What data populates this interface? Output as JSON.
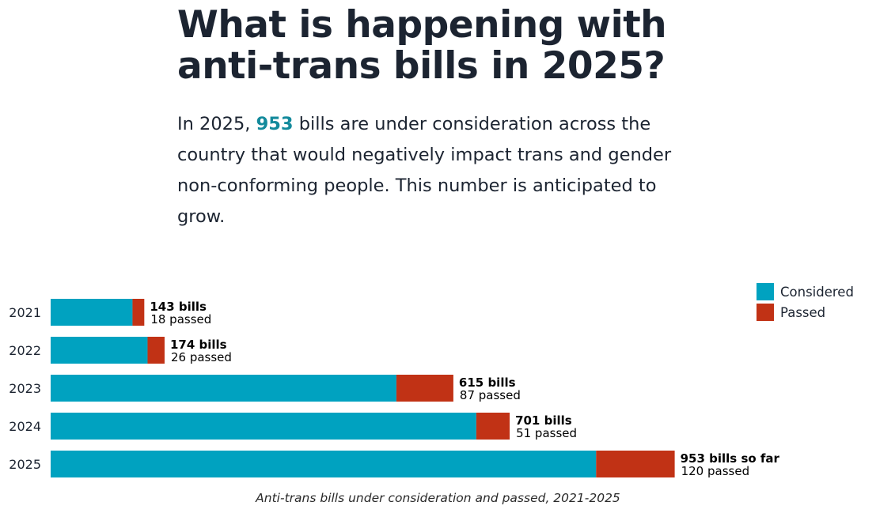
{
  "header": {
    "title_line1": "What is happening with",
    "title_line2": "anti-trans bills in 2025?",
    "intro_prefix": "In 2025, ",
    "intro_highlight": "953",
    "intro_suffix": " bills are under consideration across the country that would negatively impact trans and gender non-conforming people. This number is anticipated to grow."
  },
  "colors": {
    "considered": "#00a2c0",
    "passed": "#c13215",
    "highlight": "#138a9c"
  },
  "chart_data": {
    "type": "bar",
    "orientation": "horizontal",
    "stacked": true,
    "categories": [
      "2021",
      "2022",
      "2023",
      "2024",
      "2025"
    ],
    "series": [
      {
        "name": "Considered",
        "values": [
          143,
          174,
          615,
          701,
          953
        ]
      },
      {
        "name": "Passed",
        "values": [
          18,
          26,
          87,
          51,
          120
        ]
      }
    ],
    "bar_labels": [
      "143 bills",
      "174 bills",
      "615 bills",
      "701 bills",
      "953 bills so far"
    ],
    "passed_labels": [
      "18 passed",
      "26 passed",
      "87 passed",
      "51 passed",
      "120 passed"
    ],
    "legend_position": "top-right",
    "caption": "Anti-trans bills under consideration and passed, 2021-2025",
    "grid": false
  }
}
